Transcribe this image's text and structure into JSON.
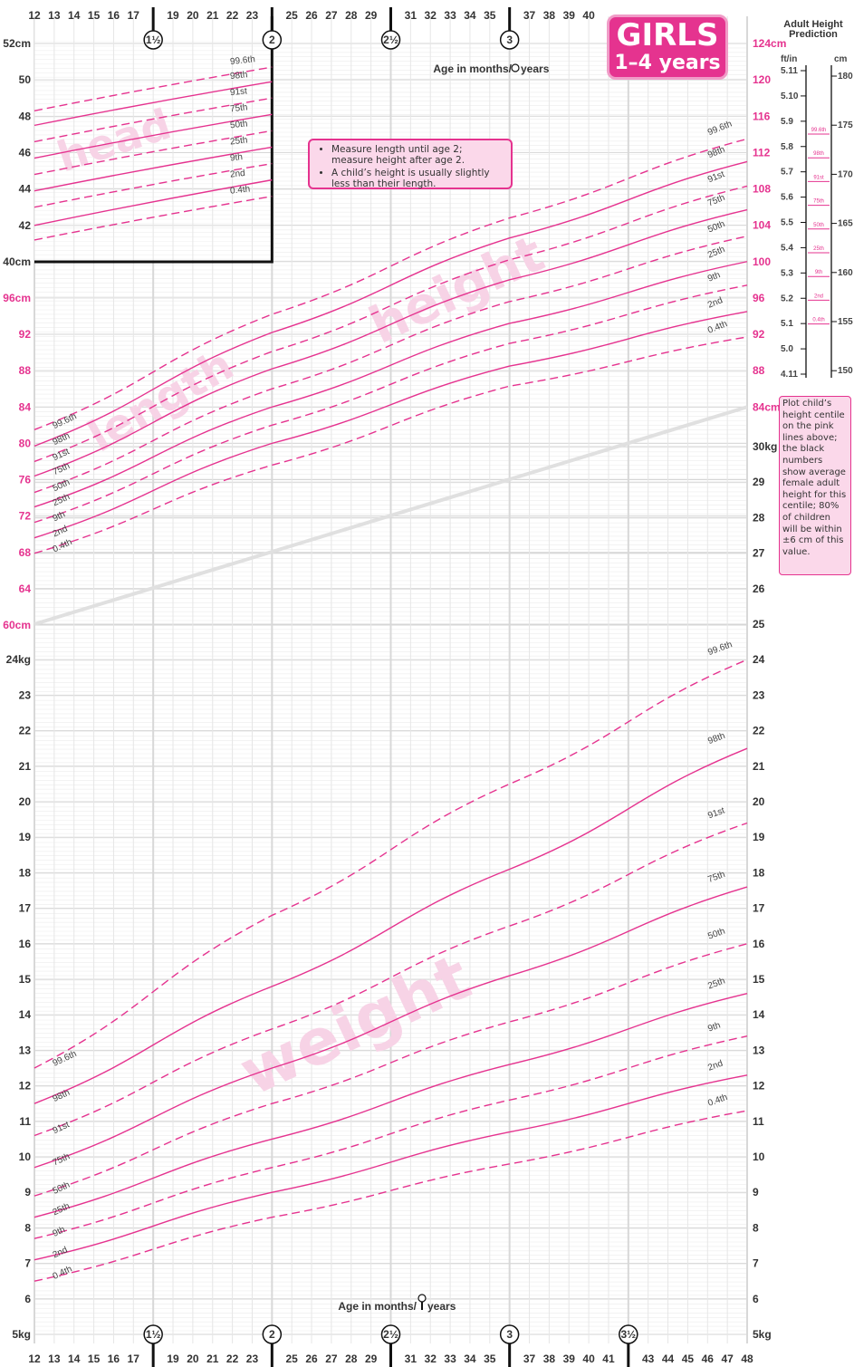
{
  "badge": {
    "line1": "GIRLS",
    "line2": "1–4 years"
  },
  "callout": [
    "Measure length until age 2; measure height after age 2.",
    "A child’s height is usually slightly less than their length."
  ],
  "note": "Plot child’s height centile on the pink lines above; the black numbers show average female adult height for this centile; 80% of children will be within ±6 cm of this value.",
  "prediction": {
    "title_line1": "Adult Height",
    "title_line2": "Prediction",
    "left_unit": "ft/in",
    "right_unit": "cm",
    "ft_labels": [
      "5.11",
      "5.10",
      "5.9",
      "5.8",
      "5.7",
      "5.6",
      "5.5",
      "5.4",
      "5.3",
      "5.2",
      "5.1",
      "5.0",
      "4.11"
    ],
    "cm_labels": [
      "180",
      "175",
      "170",
      "165",
      "160",
      "155",
      "150"
    ],
    "centiles": [
      "99.6th",
      "98th",
      "91st",
      "75th",
      "50th",
      "25th",
      "9th",
      "2nd",
      "0.4th"
    ]
  },
  "axis_titles": {
    "top": "Age in months/",
    "bottom": "Age in months/",
    "years": "years"
  },
  "watermarks": {
    "head": "head",
    "length": "length",
    "height": "height",
    "weight": "weight"
  },
  "chart_data": {
    "type": "line",
    "x_axis": {
      "unit": "months",
      "range": [
        12,
        48
      ],
      "ticks": [
        12,
        13,
        14,
        15,
        16,
        17,
        19,
        20,
        21,
        22,
        23,
        25,
        26,
        27,
        28,
        29,
        31,
        32,
        33,
        34,
        35,
        37,
        38,
        39,
        40
      ],
      "bottom_ticks": [
        12,
        13,
        14,
        15,
        16,
        17,
        19,
        20,
        21,
        22,
        23,
        25,
        26,
        27,
        28,
        29,
        31,
        32,
        33,
        34,
        35,
        37,
        38,
        39,
        40,
        41,
        43,
        44,
        45,
        46,
        47,
        48
      ],
      "year_markers": [
        {
          "month": 18,
          "label": "1½"
        },
        {
          "month": 24,
          "label": "2"
        },
        {
          "month": 30,
          "label": "2½"
        },
        {
          "month": 36,
          "label": "3"
        }
      ],
      "bottom_year_markers": [
        {
          "month": 18,
          "label": "1½"
        },
        {
          "month": 24,
          "label": "2"
        },
        {
          "month": 30,
          "label": "2½"
        },
        {
          "month": 36,
          "label": "3"
        },
        {
          "month": 42,
          "label": "3½"
        }
      ]
    },
    "centile_names": [
      "99.6th",
      "98th",
      "91st",
      "75th",
      "50th",
      "25th",
      "9th",
      "2nd",
      "0.4th"
    ],
    "head": {
      "unit": "cm",
      "x": [
        12,
        24
      ],
      "ylim": [
        40,
        52
      ],
      "left_ticks": [
        "52cm",
        "50",
        "48",
        "46",
        "44",
        "42",
        "40cm"
      ],
      "series": [
        {
          "name": "99.6th",
          "values": [
            48.3,
            50.7
          ]
        },
        {
          "name": "98th",
          "values": [
            47.5,
            49.9
          ]
        },
        {
          "name": "91st",
          "values": [
            46.6,
            49.0
          ]
        },
        {
          "name": "75th",
          "values": [
            45.7,
            48.1
          ]
        },
        {
          "name": "50th",
          "values": [
            44.8,
            47.2
          ]
        },
        {
          "name": "25th",
          "values": [
            43.9,
            46.3
          ]
        },
        {
          "name": "9th",
          "values": [
            43.0,
            45.4
          ]
        },
        {
          "name": "2nd",
          "values": [
            42.0,
            44.5
          ]
        },
        {
          "name": "0.4th",
          "values": [
            41.2,
            43.6
          ]
        }
      ]
    },
    "length_height": {
      "unit": "cm",
      "x": [
        12,
        24,
        36,
        48
      ],
      "ylim": [
        60,
        124
      ],
      "left_ticks": [
        "96cm",
        "92",
        "88",
        "84",
        "80",
        "76",
        "72",
        "68",
        "64",
        "60cm"
      ],
      "right_ticks": [
        "124cm",
        "120",
        "116",
        "112",
        "108",
        "104",
        "100",
        "96",
        "92",
        "88",
        "84cm"
      ],
      "series": [
        {
          "name": "99.6th",
          "values": [
            81.5,
            94.2,
            104.8,
            113.5
          ]
        },
        {
          "name": "98th",
          "values": [
            79.7,
            92.2,
            102.6,
            111.0
          ]
        },
        {
          "name": "91st",
          "values": [
            78.0,
            90.1,
            100.2,
            108.3
          ]
        },
        {
          "name": "75th",
          "values": [
            76.4,
            88.2,
            98.0,
            105.7
          ]
        },
        {
          "name": "50th",
          "values": [
            74.6,
            86.0,
            95.6,
            102.8
          ]
        },
        {
          "name": "25th",
          "values": [
            73.0,
            84.0,
            93.2,
            100.0
          ]
        },
        {
          "name": "9th",
          "values": [
            71.3,
            82.0,
            91.0,
            97.4
          ]
        },
        {
          "name": "2nd",
          "values": [
            69.6,
            80.0,
            88.5,
            94.5
          ]
        },
        {
          "name": "0.4th",
          "values": [
            67.9,
            77.6,
            86.3,
            91.7
          ]
        }
      ]
    },
    "weight": {
      "unit": "kg",
      "x": [
        12,
        24,
        36,
        48
      ],
      "ylim": [
        5,
        30
      ],
      "left_ticks": [
        "24kg",
        "23",
        "22",
        "21",
        "20",
        "19",
        "18",
        "17",
        "16",
        "15",
        "14",
        "13",
        "12",
        "11",
        "10",
        "9",
        "8",
        "7",
        "6",
        "5kg"
      ],
      "right_ticks": [
        "30kg",
        "29",
        "28",
        "27",
        "26",
        "25",
        "24",
        "23",
        "22",
        "21",
        "20",
        "19",
        "18",
        "17",
        "16",
        "15",
        "14",
        "13",
        "12",
        "11",
        "10",
        "9",
        "8",
        "7",
        "6",
        "5kg"
      ],
      "series": [
        {
          "name": "99.6th",
          "values": [
            12.5,
            16.8,
            20.5,
            24.0
          ]
        },
        {
          "name": "98th",
          "values": [
            11.5,
            14.8,
            18.1,
            21.5
          ]
        },
        {
          "name": "91st",
          "values": [
            10.6,
            13.6,
            16.5,
            19.4
          ]
        },
        {
          "name": "75th",
          "values": [
            9.7,
            12.5,
            15.1,
            17.6
          ]
        },
        {
          "name": "50th",
          "values": [
            8.9,
            11.5,
            13.8,
            16.0
          ]
        },
        {
          "name": "25th",
          "values": [
            8.3,
            10.5,
            12.6,
            14.6
          ]
        },
        {
          "name": "9th",
          "values": [
            7.7,
            9.7,
            11.6,
            13.4
          ]
        },
        {
          "name": "2nd",
          "values": [
            7.1,
            9.0,
            10.7,
            12.3
          ]
        },
        {
          "name": "0.4th",
          "values": [
            6.5,
            8.3,
            9.8,
            11.3
          ]
        }
      ]
    }
  },
  "colors": {
    "pink": "#e5338f",
    "pink_light": "#f7d3e6",
    "grid": "#d9d9d9",
    "axis_text": "#333333"
  }
}
